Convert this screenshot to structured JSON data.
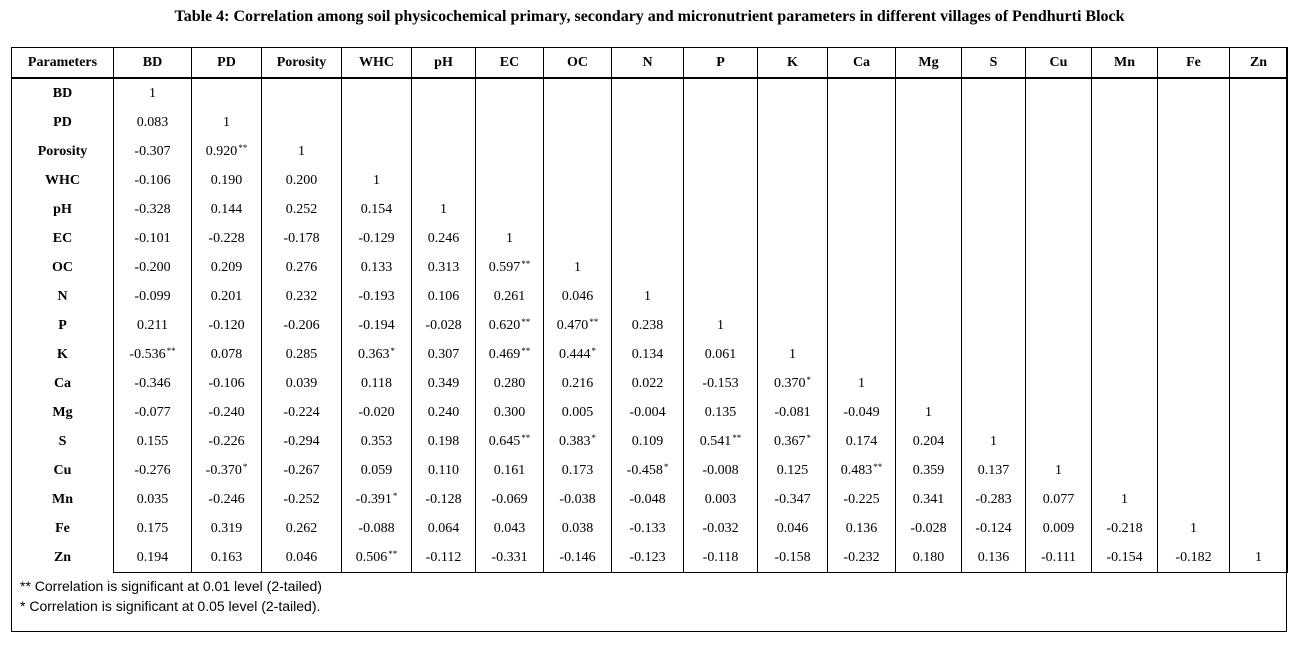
{
  "title": "Table 4: Correlation among soil physicochemical primary, secondary and micronutrient parameters in different villages of Pendhurti Block",
  "header": [
    "Parameters",
    "BD",
    "PD",
    "Porosity",
    "WHC",
    "pH",
    "EC",
    "OC",
    "N",
    "P",
    "K",
    "Ca",
    "Mg",
    "S",
    "Cu",
    "Mn",
    "Fe",
    "Zn"
  ],
  "rows": [
    {
      "label": "BD",
      "cells": [
        "1"
      ],
      "sig": [
        ""
      ]
    },
    {
      "label": "PD",
      "cells": [
        "0.083",
        "1"
      ],
      "sig": [
        "",
        ""
      ]
    },
    {
      "label": "Porosity",
      "cells": [
        "-0.307",
        "0.920",
        "1"
      ],
      "sig": [
        "",
        "**",
        ""
      ]
    },
    {
      "label": "WHC",
      "cells": [
        "-0.106",
        "0.190",
        "0.200",
        "1"
      ],
      "sig": [
        "",
        "",
        "",
        ""
      ]
    },
    {
      "label": "pH",
      "cells": [
        "-0.328",
        "0.144",
        "0.252",
        "0.154",
        "1"
      ],
      "sig": [
        "",
        "",
        "",
        "",
        ""
      ]
    },
    {
      "label": "EC",
      "cells": [
        "-0.101",
        "-0.228",
        "-0.178",
        "-0.129",
        "0.246",
        "1"
      ],
      "sig": [
        "",
        "",
        "",
        "",
        "",
        ""
      ]
    },
    {
      "label": "OC",
      "cells": [
        "-0.200",
        "0.209",
        "0.276",
        "0.133",
        "0.313",
        "0.597",
        "1"
      ],
      "sig": [
        "",
        "",
        "",
        "",
        "",
        "**",
        ""
      ]
    },
    {
      "label": "N",
      "cells": [
        "-0.099",
        "0.201",
        "0.232",
        "-0.193",
        "0.106",
        "0.261",
        "0.046",
        "1"
      ],
      "sig": [
        "",
        "",
        "",
        "",
        "",
        "",
        "",
        ""
      ]
    },
    {
      "label": "P",
      "cells": [
        "0.211",
        "-0.120",
        "-0.206",
        "-0.194",
        "-0.028",
        "0.620",
        "0.470",
        "0.238",
        "1"
      ],
      "sig": [
        "",
        "",
        "",
        "",
        "",
        "**",
        "**",
        "",
        ""
      ]
    },
    {
      "label": "K",
      "cells": [
        "-0.536",
        "0.078",
        "0.285",
        "0.363",
        "0.307",
        "0.469",
        "0.444",
        "0.134",
        "0.061",
        "1"
      ],
      "sig": [
        "**",
        "",
        "",
        "*",
        "",
        "**",
        "*",
        "",
        "",
        ""
      ]
    },
    {
      "label": "Ca",
      "cells": [
        "-0.346",
        "-0.106",
        "0.039",
        "0.118",
        "0.349",
        "0.280",
        "0.216",
        "0.022",
        "-0.153",
        "0.370",
        "1"
      ],
      "sig": [
        "",
        "",
        "",
        "",
        "",
        "",
        "",
        "",
        "",
        "*",
        ""
      ]
    },
    {
      "label": "Mg",
      "cells": [
        "-0.077",
        "-0.240",
        "-0.224",
        "-0.020",
        "0.240",
        "0.300",
        "0.005",
        "-0.004",
        "0.135",
        "-0.081",
        "-0.049",
        "1"
      ],
      "sig": [
        "",
        "",
        "",
        "",
        "",
        "",
        "",
        "",
        "",
        "",
        "",
        ""
      ]
    },
    {
      "label": "S",
      "cells": [
        "0.155",
        "-0.226",
        "-0.294",
        "0.353",
        "0.198",
        "0.645",
        "0.383",
        "0.109",
        "0.541",
        "0.367",
        "0.174",
        "0.204",
        "1"
      ],
      "sig": [
        "",
        "",
        "",
        "",
        "",
        "**",
        "*",
        "",
        "**",
        "*",
        "",
        "",
        ""
      ]
    },
    {
      "label": "Cu",
      "cells": [
        "-0.276",
        "-0.370",
        "-0.267",
        "0.059",
        "0.110",
        "0.161",
        "0.173",
        "-0.458",
        "-0.008",
        "0.125",
        "0.483",
        "0.359",
        "0.137",
        "1"
      ],
      "sig": [
        "",
        "*",
        "",
        "",
        "",
        "",
        "",
        "*",
        "",
        "",
        "**",
        "",
        "",
        ""
      ]
    },
    {
      "label": "Mn",
      "cells": [
        "0.035",
        "-0.246",
        "-0.252",
        "-0.391",
        "-0.128",
        "-0.069",
        "-0.038",
        "-0.048",
        "0.003",
        "-0.347",
        "-0.225",
        "0.341",
        "-0.283",
        "0.077",
        "1"
      ],
      "sig": [
        "",
        "",
        "",
        "*",
        "",
        "",
        "",
        "",
        "",
        "",
        "",
        "",
        "",
        "",
        ""
      ]
    },
    {
      "label": "Fe",
      "cells": [
        "0.175",
        "0.319",
        "0.262",
        "-0.088",
        "0.064",
        "0.043",
        "0.038",
        "-0.133",
        "-0.032",
        "0.046",
        "0.136",
        "-0.028",
        "-0.124",
        "0.009",
        "-0.218",
        "1"
      ],
      "sig": [
        "",
        "",
        "",
        "",
        "",
        "",
        "",
        "",
        "",
        "",
        "",
        "",
        "",
        "",
        "",
        ""
      ]
    },
    {
      "label": "Zn",
      "cells": [
        "0.194",
        "0.163",
        "0.046",
        "0.506",
        "-0.112",
        "-0.331",
        "-0.146",
        "-0.123",
        "-0.118",
        "-0.158",
        "-0.232",
        "0.180",
        "0.136",
        "-0.111",
        "-0.154",
        "-0.182",
        "1"
      ],
      "sig": [
        "",
        "",
        "",
        "**",
        "",
        "",
        "",
        "",
        "",
        "",
        "",
        "",
        "",
        "",
        "",
        "",
        ""
      ]
    }
  ],
  "notes": [
    "** Correlation is significant at 0.01 level (2-tailed)",
    "* Correlation is significant at 0.05 level  (2-tailed)."
  ]
}
